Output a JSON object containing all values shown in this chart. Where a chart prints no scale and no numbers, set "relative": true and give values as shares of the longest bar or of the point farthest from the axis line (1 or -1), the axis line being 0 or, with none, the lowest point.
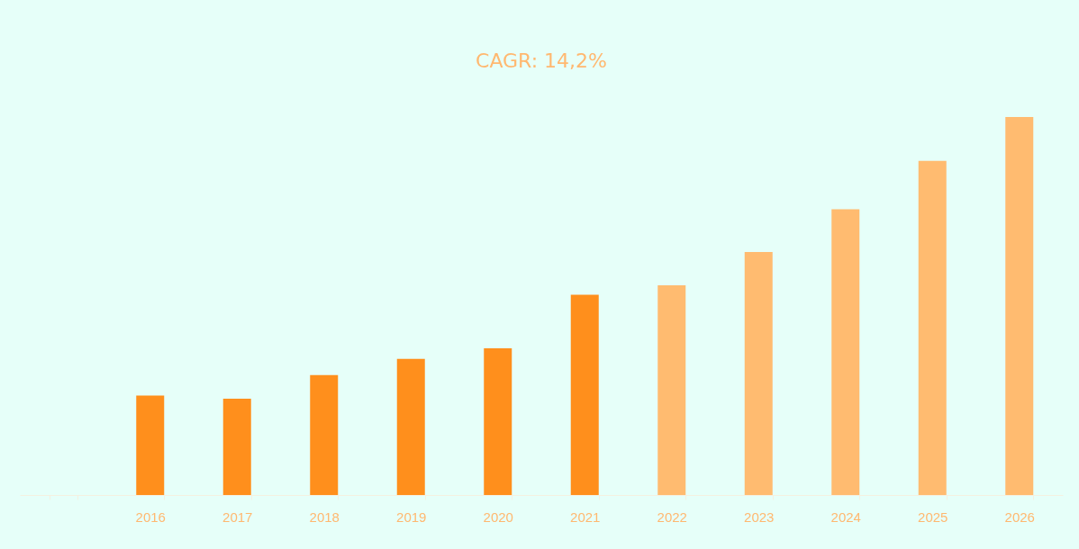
{
  "chart_data": {
    "type": "bar",
    "title": "CAGR: 14,2%",
    "relative": true,
    "categories": [
      null,
      "2016",
      "2017",
      "2018",
      "2019",
      "2020",
      "2021",
      "2022",
      "2023",
      "2024",
      "2025",
      "2026"
    ],
    "values": [
      null,
      0.263,
      0.255,
      0.317,
      0.36,
      0.388,
      0.53,
      0.555,
      0.643,
      0.756,
      0.884,
      1
    ],
    "colors": [
      "#ff8f1c",
      "#ff8f1c",
      "#ff8f1c",
      "#ff8f1c",
      "#ff8f1c",
      "#ff8f1c",
      "#ff8f1c",
      "#ffbb70",
      "#ffbb70",
      "#ffbb70",
      "#ffbb70",
      "#ffbb70"
    ],
    "grid": false
  }
}
